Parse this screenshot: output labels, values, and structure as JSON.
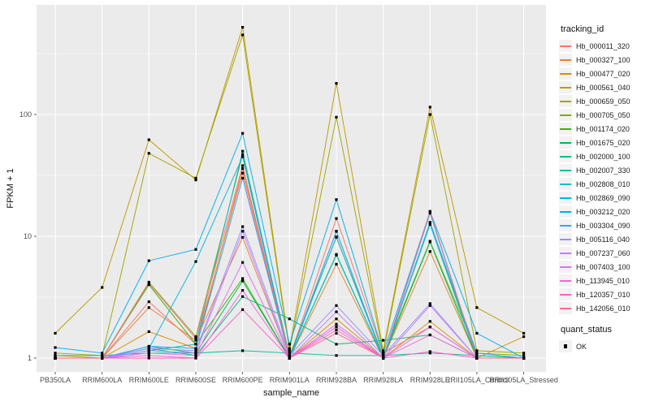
{
  "figure": {
    "background": "#FFFFFF",
    "panel_background": "#EBEBEB",
    "grid_color": "#FFFFFF",
    "tick_color": "#333333",
    "tick_label_color": "#4D4D4D",
    "point_color": "#000000"
  },
  "chart_data": {
    "type": "line",
    "title": "",
    "xlabel": "sample_name",
    "ylabel": "FPKM + 1",
    "y_scale": "log10",
    "ylim": [
      1,
      800
    ],
    "y_ticks": [
      1,
      10,
      100
    ],
    "y_tick_labels": [
      "1",
      "10",
      "100"
    ],
    "y_minor_ticks": [
      3.162,
      31.62,
      316.2
    ],
    "grid": "on",
    "legend_position": "right",
    "categories": [
      "PB350LA",
      "RRIM600LA",
      "RRIM600LE",
      "RRIM600SE",
      "RRIM600PE",
      "RRIM901LA",
      "RRIM928BA",
      "RRIM928LA",
      "RRIM928LE",
      "RRII105LA_Control",
      "RRII105LA_Stressed"
    ],
    "series": [
      {
        "name": "Hb_000011_320",
        "color": "#F8766D",
        "values": [
          1.0,
          1.0,
          2.9,
          1.3,
          33,
          1.0,
          14,
          1.1,
          1.8,
          1.0,
          1.0
        ]
      },
      {
        "name": "Hb_000327_100",
        "color": "#EA8331",
        "values": [
          1.0,
          1.0,
          2.6,
          1.4,
          9.8,
          1.0,
          5.9,
          1.0,
          7.5,
          1.0,
          1.0
        ]
      },
      {
        "name": "Hb_000477_020",
        "color": "#D89000",
        "values": [
          1.05,
          1.0,
          1.65,
          1.2,
          36,
          1.0,
          2.1,
          1.0,
          2.0,
          1.0,
          1.5
        ]
      },
      {
        "name": "Hb_000561_040",
        "color": "#C09B00",
        "values": [
          1.6,
          3.8,
          62,
          29,
          520,
          1.2,
          180,
          1.15,
          115,
          2.6,
          1.6
        ]
      },
      {
        "name": "Hb_000659_050",
        "color": "#A3A500",
        "values": [
          1.1,
          1.05,
          48,
          30,
          450,
          1.15,
          95,
          1.1,
          100,
          1.15,
          1.1
        ]
      },
      {
        "name": "Hb_000705_050",
        "color": "#7CAE00",
        "values": [
          1.0,
          1.0,
          4.2,
          1.5,
          47,
          1.05,
          9.8,
          1.05,
          9.1,
          1.1,
          1.05
        ]
      },
      {
        "name": "Hb_001174_020",
        "color": "#39B600",
        "values": [
          1.0,
          1.0,
          4.0,
          1.3,
          4.5,
          1.0,
          11,
          1.0,
          13,
          1.05,
          1.0
        ]
      },
      {
        "name": "Hb_001675_020",
        "color": "#00BB4E",
        "values": [
          1.0,
          1.0,
          1.25,
          1.1,
          4.3,
          1.0,
          7.0,
          1.0,
          9.0,
          1.0,
          1.0
        ]
      },
      {
        "name": "Hb_002000_100",
        "color": "#00BF7D",
        "values": [
          1.0,
          1.0,
          1.2,
          1.05,
          3.2,
          2.1,
          1.3,
          1.4,
          1.55,
          1.0,
          1.0
        ]
      },
      {
        "name": "Hb_002007_330",
        "color": "#00C1A3",
        "values": [
          1.05,
          1.05,
          1.1,
          1.1,
          1.15,
          1.1,
          1.05,
          1.05,
          1.1,
          1.05,
          1.0
        ]
      },
      {
        "name": "Hb_002808_010",
        "color": "#00BFC4",
        "values": [
          1.0,
          1.0,
          1.15,
          1.3,
          50,
          1.0,
          7.1,
          1.0,
          15.5,
          1.0,
          1.0
        ]
      },
      {
        "name": "Hb_002869_090",
        "color": "#00BAE0",
        "values": [
          1.0,
          1.0,
          1.2,
          6.2,
          45,
          1.0,
          9.9,
          1.0,
          12.5,
          1.0,
          1.0
        ]
      },
      {
        "name": "Hb_003212_020",
        "color": "#00B0F6",
        "values": [
          1.22,
          1.1,
          6.3,
          7.8,
          70,
          1.3,
          20,
          1.1,
          16,
          1.6,
          1.0
        ]
      },
      {
        "name": "Hb_003304_090",
        "color": "#35A2FF",
        "values": [
          1.0,
          1.0,
          1.25,
          1.2,
          30,
          1.0,
          11,
          1.0,
          13,
          1.1,
          1.0
        ]
      },
      {
        "name": "Hb_005116_040",
        "color": "#9590FF",
        "values": [
          1.0,
          1.0,
          1.2,
          1.15,
          12,
          1.05,
          2.7,
          1.05,
          2.8,
          1.0,
          1.0
        ]
      },
      {
        "name": "Hb_007237_060",
        "color": "#C77CFF",
        "values": [
          1.0,
          1.0,
          1.15,
          1.1,
          11,
          1.0,
          2.4,
          1.0,
          2.7,
          1.0,
          1.0
        ]
      },
      {
        "name": "Hb_007403_100",
        "color": "#E76BF3",
        "values": [
          1.0,
          1.0,
          1.1,
          1.05,
          6.1,
          1.0,
          1.9,
          1.0,
          1.8,
          1.0,
          1.0
        ]
      },
      {
        "name": "Hb_113945_010",
        "color": "#FA62DB",
        "values": [
          1.0,
          1.0,
          1.05,
          1.0,
          3.6,
          1.0,
          1.8,
          1.0,
          1.55,
          1.0,
          1.0
        ]
      },
      {
        "name": "Hb_120357_010",
        "color": "#FF61C3",
        "values": [
          1.0,
          1.0,
          1.0,
          1.0,
          2.5,
          1.0,
          1.7,
          1.0,
          1.13,
          1.0,
          1.0
        ]
      },
      {
        "name": "Hb_142056_010",
        "color": "#FF6A98",
        "values": [
          1.0,
          1.0,
          4.1,
          1.45,
          38,
          1.0,
          1.6,
          1.0,
          16,
          1.0,
          1.0
        ]
      }
    ],
    "legend": {
      "color_title": "tracking_id",
      "shape_title": "quant_status",
      "shape_items": [
        {
          "label": "OK",
          "color": "#000000"
        }
      ]
    }
  }
}
